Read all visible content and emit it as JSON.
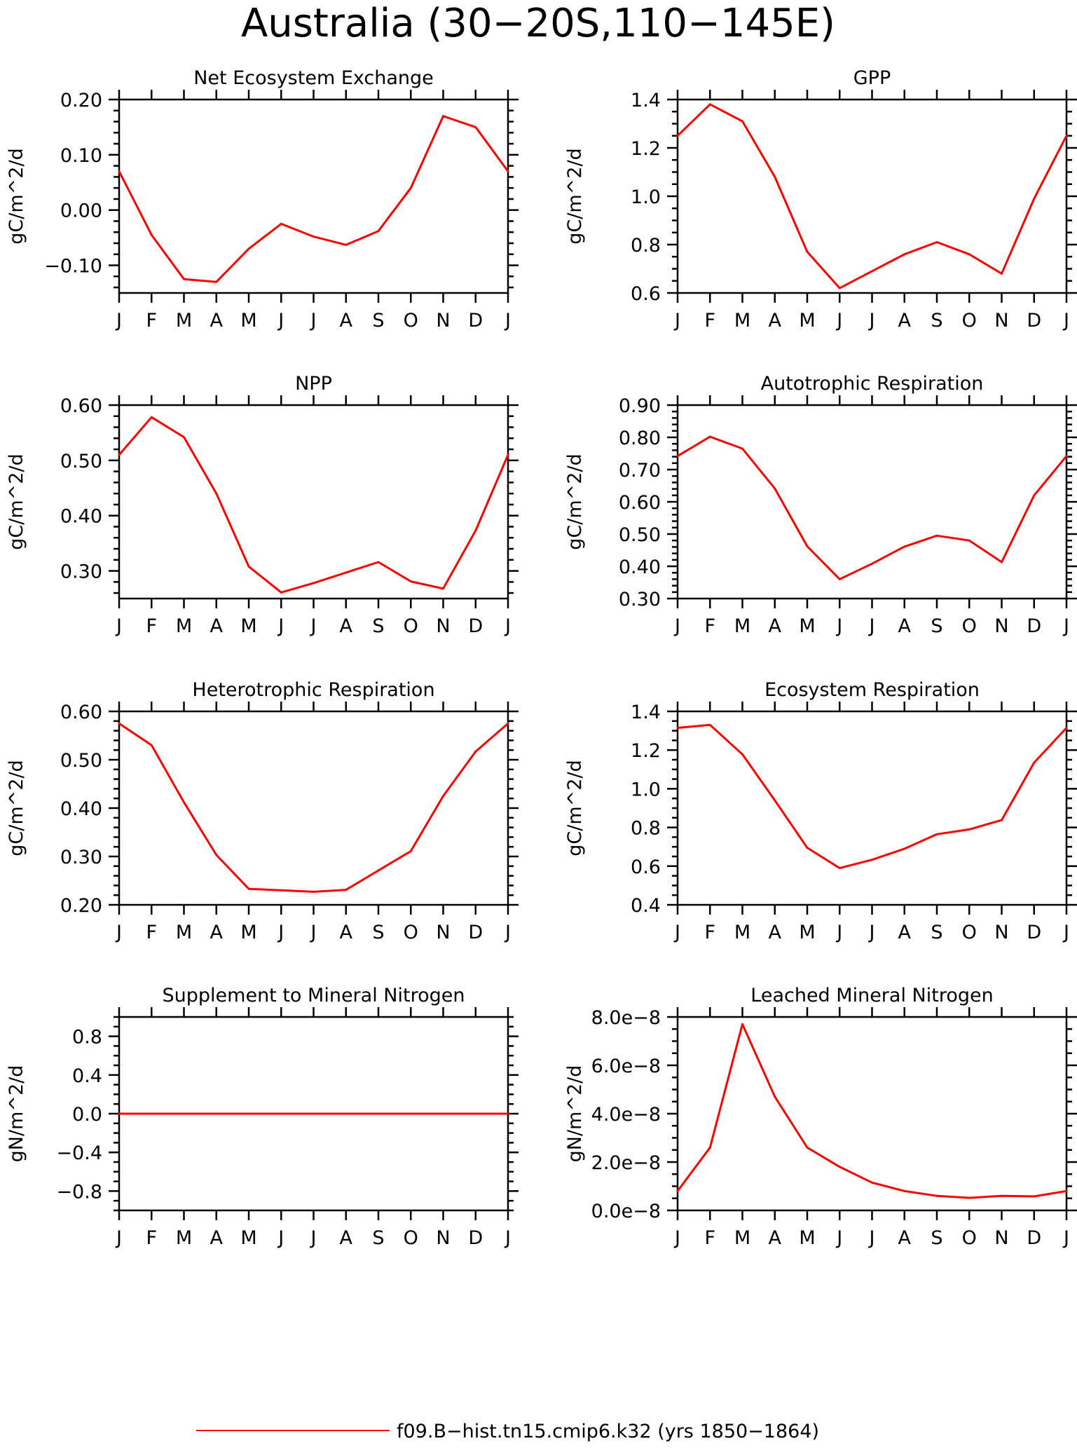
{
  "figure": {
    "title": "Australia (30−20S,110−145E)",
    "legend_label": "f09.B−hist.tn15.cmip6.k32 (yrs 1850−1864)",
    "series_color": "#ff0000"
  },
  "chart_data": [
    {
      "type": "line",
      "title": "Net Ecosystem Exchange",
      "ylabel": "gC/m^2/d",
      "categories": [
        "J",
        "F",
        "M",
        "A",
        "M",
        "J",
        "J",
        "A",
        "S",
        "O",
        "N",
        "D",
        "J"
      ],
      "ylim": [
        -0.15,
        0.2
      ],
      "yticks": [
        -0.1,
        0.0,
        0.1,
        0.2
      ],
      "ytick_labels": [
        "−0.10",
        "0.00",
        "0.10",
        "0.20"
      ],
      "minor_step": 0.02,
      "series": [
        {
          "values": [
            0.07,
            -0.045,
            -0.125,
            -0.13,
            -0.07,
            -0.025,
            -0.048,
            -0.063,
            -0.038,
            0.04,
            0.17,
            0.15,
            0.07
          ]
        }
      ]
    },
    {
      "type": "line",
      "title": "GPP",
      "ylabel": "gC/m^2/d",
      "categories": [
        "J",
        "F",
        "M",
        "A",
        "M",
        "J",
        "J",
        "A",
        "S",
        "O",
        "N",
        "D",
        "J"
      ],
      "ylim": [
        0.6,
        1.4
      ],
      "yticks": [
        0.6,
        0.8,
        1.0,
        1.2,
        1.4
      ],
      "ytick_labels": [
        "0.6",
        "0.8",
        "1.0",
        "1.2",
        "1.4"
      ],
      "minor_step": 0.05,
      "series": [
        {
          "values": [
            1.25,
            1.38,
            1.31,
            1.08,
            0.77,
            0.62,
            0.69,
            0.76,
            0.81,
            0.76,
            0.68,
            0.99,
            1.25
          ]
        }
      ]
    },
    {
      "type": "line",
      "title": "NPP",
      "ylabel": "gC/m^2/d",
      "categories": [
        "J",
        "F",
        "M",
        "A",
        "M",
        "J",
        "J",
        "A",
        "S",
        "O",
        "N",
        "D",
        "J"
      ],
      "ylim": [
        0.25,
        0.6
      ],
      "yticks": [
        0.3,
        0.4,
        0.5,
        0.6
      ],
      "ytick_labels": [
        "0.30",
        "0.40",
        "0.50",
        "0.60"
      ],
      "minor_step": 0.02,
      "series": [
        {
          "values": [
            0.51,
            0.578,
            0.542,
            0.44,
            0.308,
            0.261,
            0.278,
            0.297,
            0.316,
            0.281,
            0.268,
            0.373,
            0.51
          ]
        }
      ]
    },
    {
      "type": "line",
      "title": "Autotrophic Respiration",
      "ylabel": "gC/m^2/d",
      "categories": [
        "J",
        "F",
        "M",
        "A",
        "M",
        "J",
        "J",
        "A",
        "S",
        "O",
        "N",
        "D",
        "J"
      ],
      "ylim": [
        0.3,
        0.9
      ],
      "yticks": [
        0.3,
        0.4,
        0.5,
        0.6,
        0.7,
        0.8,
        0.9
      ],
      "ytick_labels": [
        "0.30",
        "0.40",
        "0.50",
        "0.60",
        "0.70",
        "0.80",
        "0.90"
      ],
      "minor_step": 0.02,
      "series": [
        {
          "values": [
            0.742,
            0.802,
            0.765,
            0.641,
            0.462,
            0.36,
            0.408,
            0.461,
            0.495,
            0.48,
            0.413,
            0.62,
            0.742
          ]
        }
      ]
    },
    {
      "type": "line",
      "title": "Heterotrophic Respiration",
      "ylabel": "gC/m^2/d",
      "categories": [
        "J",
        "F",
        "M",
        "A",
        "M",
        "J",
        "J",
        "A",
        "S",
        "O",
        "N",
        "D",
        "J"
      ],
      "ylim": [
        0.2,
        0.6
      ],
      "yticks": [
        0.2,
        0.3,
        0.4,
        0.5,
        0.6
      ],
      "ytick_labels": [
        "0.20",
        "0.30",
        "0.40",
        "0.50",
        "0.60"
      ],
      "minor_step": 0.02,
      "series": [
        {
          "values": [
            0.575,
            0.53,
            0.412,
            0.303,
            0.233,
            0.23,
            0.227,
            0.231,
            0.271,
            0.311,
            0.425,
            0.517,
            0.575
          ]
        }
      ]
    },
    {
      "type": "line",
      "title": "Ecosystem Respiration",
      "ylabel": "gC/m^2/d",
      "categories": [
        "J",
        "F",
        "M",
        "A",
        "M",
        "J",
        "J",
        "A",
        "S",
        "O",
        "N",
        "D",
        "J"
      ],
      "ylim": [
        0.4,
        1.4
      ],
      "yticks": [
        0.4,
        0.6,
        0.8,
        1.0,
        1.2,
        1.4
      ],
      "ytick_labels": [
        "0.4",
        "0.6",
        "0.8",
        "1.0",
        "1.2",
        "1.4"
      ],
      "minor_step": 0.05,
      "series": [
        {
          "values": [
            1.315,
            1.33,
            1.178,
            0.94,
            0.695,
            0.59,
            0.633,
            0.69,
            0.765,
            0.79,
            0.838,
            1.135,
            1.315
          ]
        }
      ]
    },
    {
      "type": "line",
      "title": "Supplement to Mineral Nitrogen",
      "ylabel": "gN/m^2/d",
      "categories": [
        "J",
        "F",
        "M",
        "A",
        "M",
        "J",
        "J",
        "A",
        "S",
        "O",
        "N",
        "D",
        "J"
      ],
      "ylim": [
        -1.0,
        1.0
      ],
      "yticks": [
        -0.8,
        -0.4,
        0.0,
        0.4,
        0.8
      ],
      "ytick_labels": [
        "−0.8",
        "−0.4",
        "0.0",
        "0.4",
        "0.8"
      ],
      "minor_step": 0.1,
      "series": [
        {
          "values": [
            0,
            0,
            0,
            0,
            0,
            0,
            0,
            0,
            0,
            0,
            0,
            0,
            0
          ]
        }
      ]
    },
    {
      "type": "line",
      "title": "Leached Mineral Nitrogen",
      "ylabel": "gN/m^2/d",
      "categories": [
        "J",
        "F",
        "M",
        "A",
        "M",
        "J",
        "J",
        "A",
        "S",
        "O",
        "N",
        "D",
        "J"
      ],
      "ylim": [
        0,
        8e-08
      ],
      "yticks": [
        0,
        2e-08,
        4e-08,
        6e-08,
        8e-08
      ],
      "ytick_labels": [
        "0.0e−8",
        "2.0e−8",
        "4.0e−8",
        "6.0e−8",
        "8.0e−8"
      ],
      "minor_step": 5e-09,
      "series": [
        {
          "values": [
            8e-09,
            2.6e-08,
            7.7e-08,
            4.7e-08,
            2.6e-08,
            1.8e-08,
            1.15e-08,
            8e-09,
            6e-09,
            5.2e-09,
            6e-09,
            5.8e-09,
            8e-09
          ]
        }
      ]
    }
  ]
}
